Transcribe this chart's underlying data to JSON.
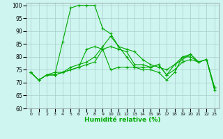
{
  "xlabel": "Humidité relative (%)",
  "xlim": [
    -0.5,
    23.5
  ],
  "ylim": [
    60,
    101
  ],
  "yticks": [
    60,
    65,
    70,
    75,
    80,
    85,
    90,
    95,
    100
  ],
  "xticks": [
    0,
    1,
    2,
    3,
    4,
    5,
    6,
    7,
    8,
    9,
    10,
    11,
    12,
    13,
    14,
    15,
    16,
    17,
    18,
    19,
    20,
    21,
    22,
    23
  ],
  "xtick_labels": [
    "0",
    "1",
    "2",
    "3",
    "4",
    "5",
    "6",
    "7",
    "8",
    "9",
    "10",
    "11",
    "12",
    "13",
    "14",
    "15",
    "16",
    "17",
    "18",
    "19",
    "20",
    "21",
    "22",
    "23"
  ],
  "background_color": "#cef5f0",
  "grid_color": "#aacccc",
  "line_color": "#00aa00",
  "lines": [
    {
      "x": [
        0,
        1,
        2,
        3,
        4,
        5,
        6,
        7,
        8,
        9,
        10,
        11,
        12,
        13,
        14,
        15,
        16,
        17,
        18,
        19,
        20,
        21,
        22,
        23
      ],
      "y": [
        74,
        71,
        73,
        73,
        86,
        99,
        100,
        100,
        100,
        91,
        89,
        84,
        80,
        76,
        75,
        75,
        74,
        71,
        74,
        80,
        81,
        78,
        79,
        67
      ]
    },
    {
      "x": [
        0,
        1,
        2,
        3,
        4,
        5,
        6,
        7,
        8,
        9,
        10,
        11,
        12,
        13,
        14,
        15,
        16,
        17,
        18,
        19,
        20,
        21,
        22,
        23
      ],
      "y": [
        74,
        71,
        73,
        73,
        74,
        75,
        76,
        77,
        78,
        83,
        75,
        76,
        76,
        76,
        76,
        76,
        77,
        73,
        75,
        78,
        79,
        78,
        79,
        68
      ]
    },
    {
      "x": [
        0,
        1,
        2,
        3,
        4,
        5,
        6,
        7,
        8,
        9,
        10,
        11,
        12,
        13,
        14,
        15,
        16,
        17,
        18,
        19,
        20,
        21,
        22,
        23
      ],
      "y": [
        74,
        71,
        73,
        73,
        74,
        75,
        76,
        83,
        84,
        83,
        84,
        83,
        82,
        77,
        77,
        76,
        77,
        73,
        77,
        79,
        81,
        78,
        79,
        68
      ]
    },
    {
      "x": [
        0,
        1,
        2,
        3,
        4,
        5,
        6,
        7,
        8,
        9,
        10,
        11,
        12,
        13,
        14,
        15,
        16,
        17,
        18,
        19,
        20,
        21,
        22,
        23
      ],
      "y": [
        74,
        71,
        73,
        74,
        74,
        76,
        77,
        78,
        80,
        84,
        88,
        84,
        83,
        82,
        79,
        77,
        76,
        75,
        77,
        80,
        80,
        78,
        79,
        68
      ]
    }
  ]
}
